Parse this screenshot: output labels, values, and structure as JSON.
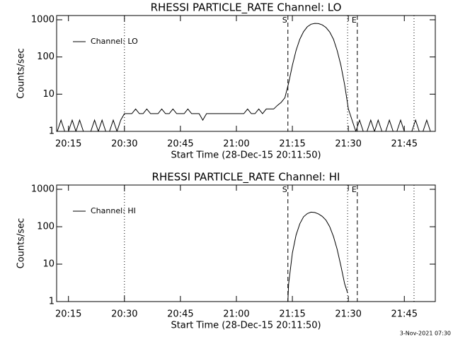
{
  "chart_data": [
    {
      "type": "line",
      "title": "RHESSI PARTICLE_RATE Channel: LO",
      "xlabel": "Start Time (28-Dec-15 20:11:50)",
      "ylabel": "Counts/sec",
      "ylog": true,
      "ylim": [
        1,
        1300
      ],
      "yticks": [
        1,
        10,
        100,
        1000
      ],
      "xlim": [
        11.83,
        113.3
      ],
      "xticks": [
        {
          "value": 15,
          "label": "20:15"
        },
        {
          "value": 30,
          "label": "20:30"
        },
        {
          "value": 45,
          "label": "20:45"
        },
        {
          "value": 60,
          "label": "21:00"
        },
        {
          "value": 75,
          "label": "21:15"
        },
        {
          "value": 90,
          "label": "21:30"
        },
        {
          "value": 105,
          "label": "21:45"
        }
      ],
      "legend": "top-left",
      "markers": [
        {
          "x": 30,
          "style": "dotted"
        },
        {
          "x": 73.8,
          "style": "dashed",
          "label": "S"
        },
        {
          "x": 89.8,
          "style": "dotted"
        },
        {
          "x": 92.4,
          "style": "dashed",
          "label": "E"
        },
        {
          "x": 107.6,
          "style": "dotted"
        }
      ],
      "x": [
        12,
        13,
        14,
        15,
        16,
        17,
        18,
        19,
        20,
        21,
        22,
        23,
        24,
        25,
        26,
        27,
        28,
        29,
        30,
        31,
        32,
        33,
        34,
        35,
        36,
        37,
        38,
        39,
        40,
        41,
        42,
        43,
        44,
        45,
        46,
        47,
        48,
        49,
        50,
        51,
        52,
        53,
        54,
        55,
        56,
        57,
        58,
        59,
        60,
        61,
        62,
        63,
        64,
        65,
        66,
        67,
        68,
        69,
        70,
        71,
        72,
        73,
        74,
        75,
        76,
        77,
        78,
        79,
        80,
        81,
        82,
        83,
        84,
        85,
        86,
        87,
        88,
        89,
        90,
        91,
        92,
        93,
        94,
        95,
        96,
        97,
        98,
        99,
        100,
        101,
        102,
        103,
        104,
        105,
        106,
        107,
        108,
        109,
        110,
        111,
        112,
        113
      ],
      "series": [
        {
          "name": "Channel: LO",
          "color": "#000000",
          "values": [
            1,
            2,
            1,
            1,
            2,
            1,
            2,
            1,
            1,
            1,
            2,
            1,
            2,
            1,
            1,
            2,
            1,
            2,
            3,
            3,
            3,
            4,
            3,
            3,
            4,
            3,
            3,
            3,
            4,
            3,
            3,
            4,
            3,
            3,
            3,
            4,
            3,
            3,
            3,
            2,
            3,
            3,
            3,
            3,
            3,
            3,
            3,
            3,
            3,
            3,
            3,
            4,
            3,
            3,
            4,
            3,
            4,
            4,
            4,
            5,
            6,
            8,
            20,
            60,
            150,
            300,
            480,
            650,
            760,
            800,
            790,
            730,
            620,
            470,
            300,
            150,
            60,
            18,
            4,
            2,
            1,
            2,
            1,
            1,
            2,
            1,
            2,
            1,
            1,
            2,
            1,
            1,
            2,
            1,
            1,
            1,
            2,
            1,
            1,
            2,
            1,
            1
          ]
        }
      ]
    },
    {
      "type": "line",
      "title": "RHESSI PARTICLE_RATE Channel: HI",
      "xlabel": "Start Time (28-Dec-15 20:11:50)",
      "ylabel": "Counts/sec",
      "ylog": true,
      "ylim": [
        1,
        1300
      ],
      "yticks": [
        1,
        10,
        100,
        1000
      ],
      "xlim": [
        11.83,
        113.3
      ],
      "xticks": [
        {
          "value": 15,
          "label": "20:15"
        },
        {
          "value": 30,
          "label": "20:30"
        },
        {
          "value": 45,
          "label": "20:45"
        },
        {
          "value": 60,
          "label": "21:00"
        },
        {
          "value": 75,
          "label": "21:15"
        },
        {
          "value": 90,
          "label": "21:30"
        },
        {
          "value": 105,
          "label": "21:45"
        }
      ],
      "legend": "top-left",
      "markers": [
        {
          "x": 30,
          "style": "dotted"
        },
        {
          "x": 73.8,
          "style": "dashed",
          "label": "S"
        },
        {
          "x": 89.8,
          "style": "dotted"
        },
        {
          "x": 92.4,
          "style": "dashed",
          "label": "E"
        },
        {
          "x": 107.6,
          "style": "dotted"
        }
      ],
      "x": [
        73.8,
        74,
        75,
        76,
        77,
        78,
        79,
        80,
        81,
        82,
        83,
        84,
        85,
        86,
        87,
        88,
        89,
        89.8
      ],
      "series": [
        {
          "name": "Channel: HI",
          "color": "#000000",
          "values": [
            1,
            3,
            20,
            60,
            120,
            185,
            225,
            245,
            240,
            220,
            190,
            150,
            100,
            55,
            25,
            9,
            3,
            1.7
          ]
        }
      ]
    }
  ],
  "timestamp": "3-Nov-2021 07:30"
}
